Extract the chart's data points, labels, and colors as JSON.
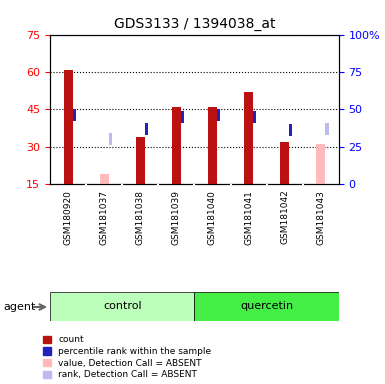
{
  "title": "GDS3133 / 1394038_at",
  "samples": [
    "GSM180920",
    "GSM181037",
    "GSM181038",
    "GSM181039",
    "GSM181040",
    "GSM181041",
    "GSM181042",
    "GSM181043"
  ],
  "groups": [
    "control",
    "control",
    "control",
    "control",
    "quercetin",
    "quercetin",
    "quercetin",
    "quercetin"
  ],
  "count_values": [
    61,
    null,
    34,
    46,
    46,
    52,
    32,
    null
  ],
  "rank_pct": [
    46,
    null,
    37,
    45,
    46,
    45,
    36,
    null
  ],
  "count_absent_values": [
    null,
    19,
    null,
    null,
    null,
    null,
    null,
    31
  ],
  "rank_absent_pct": [
    null,
    30,
    null,
    null,
    null,
    null,
    null,
    37
  ],
  "ylim_left": [
    15,
    75
  ],
  "ylim_right": [
    0,
    100
  ],
  "yticks_left": [
    15,
    30,
    45,
    60,
    75
  ],
  "yticks_right": [
    0,
    25,
    50,
    75,
    100
  ],
  "ytick_labels_right": [
    "0",
    "25",
    "50",
    "75",
    "100%"
  ],
  "bar_width": 0.25,
  "count_color": "#BB1111",
  "rank_color": "#2222BB",
  "count_absent_color": "#FFBBBB",
  "rank_absent_color": "#BBBBEE",
  "control_color_light": "#BBFFBB",
  "control_color_dark": "#44EE44",
  "quercetin_color": "#44EE44",
  "sample_bg_color": "#CCCCCC",
  "plot_bg_color": "#FFFFFF",
  "legend_items": [
    {
      "label": "count",
      "color": "#BB1111"
    },
    {
      "label": "percentile rank within the sample",
      "color": "#2222BB"
    },
    {
      "label": "value, Detection Call = ABSENT",
      "color": "#FFBBBB"
    },
    {
      "label": "rank, Detection Call = ABSENT",
      "color": "#BBBBEE"
    }
  ],
  "agent_label": "agent",
  "control_label": "control",
  "quercetin_label": "quercetin",
  "square_size": 0.08
}
